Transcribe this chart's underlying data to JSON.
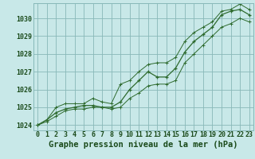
{
  "title": "Graphe pression niveau de la mer (hPa)",
  "hours": [
    0,
    1,
    2,
    3,
    4,
    5,
    6,
    7,
    8,
    9,
    10,
    11,
    12,
    13,
    14,
    15,
    16,
    17,
    18,
    19,
    20,
    21,
    22,
    23
  ],
  "x_labels": [
    "0",
    "1",
    "2",
    "3",
    "4",
    "5",
    "6",
    "7",
    "8",
    "9",
    "10",
    "11",
    "12",
    "13",
    "14",
    "15",
    "16",
    "17",
    "18",
    "19",
    "20",
    "21",
    "22",
    "23"
  ],
  "line_main": [
    1024.0,
    1024.3,
    1024.7,
    1024.9,
    1025.0,
    1025.1,
    1025.1,
    1025.0,
    1025.0,
    1025.3,
    1026.0,
    1026.5,
    1027.0,
    1026.7,
    1026.7,
    1027.2,
    1028.1,
    1028.7,
    1029.1,
    1029.5,
    1030.2,
    1030.4,
    1030.5,
    1030.2
  ],
  "line_high": [
    1024.0,
    1024.3,
    1025.0,
    1025.2,
    1025.2,
    1025.2,
    1025.5,
    1025.3,
    1025.2,
    1026.3,
    1026.5,
    1027.0,
    1027.4,
    1027.5,
    1027.5,
    1027.8,
    1028.7,
    1029.2,
    1029.5,
    1029.8,
    1030.4,
    1030.5,
    1030.8,
    1030.5
  ],
  "line_low": [
    1024.0,
    1024.2,
    1024.5,
    1024.8,
    1024.9,
    1024.9,
    1025.0,
    1025.0,
    1024.9,
    1025.0,
    1025.5,
    1025.8,
    1026.2,
    1026.3,
    1026.3,
    1026.5,
    1027.5,
    1028.0,
    1028.5,
    1029.0,
    1029.5,
    1029.7,
    1030.0,
    1029.8
  ],
  "ylim": [
    1023.7,
    1030.85
  ],
  "yticks": [
    1024,
    1025,
    1026,
    1027,
    1028,
    1029,
    1030
  ],
  "line_color": "#2d6a2d",
  "bg_color": "#c8e8e8",
  "grid_color": "#88b8b8",
  "label_color": "#1a4a1a",
  "title_fontsize": 7.5,
  "tick_fontsize": 6.0
}
